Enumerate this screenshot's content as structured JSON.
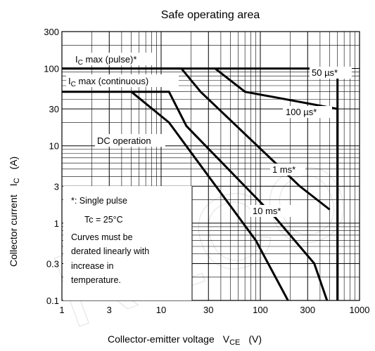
{
  "chart_data": {
    "type": "line",
    "title": "Safe operating area",
    "xlabel": {
      "text": "Collector-emitter voltage",
      "symbol": "V",
      "sub": "CE",
      "unit": "(V)"
    },
    "ylabel": {
      "text": "Collector current",
      "symbol": "I",
      "sub": "C",
      "unit": "(A)"
    },
    "x_scale": "log",
    "y_scale": "log",
    "xlim": [
      1,
      1000
    ],
    "ylim": [
      0.1,
      300
    ],
    "x_ticks": [
      {
        "v": 1,
        "label": "1"
      },
      {
        "v": 3,
        "label": "3"
      },
      {
        "v": 10,
        "label": "10"
      },
      {
        "v": 30,
        "label": "30"
      },
      {
        "v": 100,
        "label": "100"
      },
      {
        "v": 300,
        "label": "300"
      },
      {
        "v": 1000,
        "label": "1000"
      }
    ],
    "y_ticks": [
      {
        "v": 0.1,
        "label": "0.1"
      },
      {
        "v": 0.3,
        "label": "0.3"
      },
      {
        "v": 1,
        "label": "1"
      },
      {
        "v": 3,
        "label": "3"
      },
      {
        "v": 10,
        "label": "10"
      },
      {
        "v": 30,
        "label": "30"
      },
      {
        "v": 100,
        "label": "100"
      },
      {
        "v": 300,
        "label": "300"
      }
    ],
    "grid": true,
    "series": [
      {
        "name": "50 µs*",
        "points": [
          [
            1,
            100
          ],
          [
            600,
            100
          ],
          [
            600,
            0.1
          ]
        ]
      },
      {
        "name": "100 µs*",
        "points": [
          [
            35,
            100
          ],
          [
            70,
            50
          ],
          [
            600,
            30
          ],
          [
            600,
            0.1
          ]
        ]
      },
      {
        "name": "1 ms*",
        "points": [
          [
            1,
            100
          ],
          [
            16,
            100
          ],
          [
            25,
            50
          ],
          [
            250,
            3
          ],
          [
            500,
            1.5
          ]
        ]
      },
      {
        "name": "10 ms*",
        "points": [
          [
            1,
            50
          ],
          [
            12,
            50
          ],
          [
            18,
            18
          ],
          [
            140,
            1.2
          ],
          [
            350,
            0.3
          ],
          [
            470,
            0.1
          ]
        ]
      },
      {
        "name": "DC operation",
        "points": [
          [
            5,
            50
          ],
          [
            12,
            20
          ],
          [
            90,
            0.6
          ],
          [
            190,
            0.1
          ]
        ]
      }
    ],
    "annotations": [
      {
        "id": "ic-max-pulse",
        "label_main": "I",
        "label_sub": "C",
        "label_rest": " max (pulse)*"
      },
      {
        "id": "ic-max-continuous",
        "label_main": "I",
        "label_sub": "C",
        "label_rest": " max (continuous)"
      },
      {
        "id": "dc-operation",
        "text": "DC operation"
      },
      {
        "id": "label-50us",
        "text": "50 µs*"
      },
      {
        "id": "label-100us",
        "text": "100 µs*"
      },
      {
        "id": "label-1ms",
        "text": "1 ms*"
      },
      {
        "id": "label-10ms",
        "text": "10 ms*"
      }
    ],
    "note": {
      "line1": "*: Single pulse",
      "line2": "Tc = 25°C",
      "line3": "Curves must be",
      "line4": "derated linearly with",
      "line5": "increase in",
      "line6": "temperature."
    }
  },
  "watermark": {
    "text": "RECO"
  }
}
